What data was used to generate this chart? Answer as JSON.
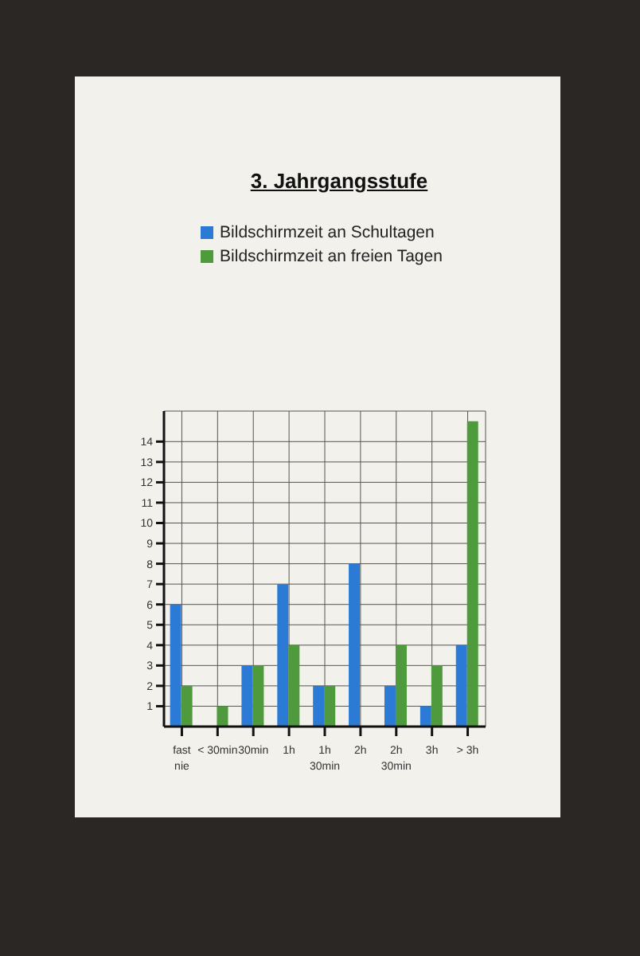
{
  "chart_data": {
    "type": "bar",
    "title": "3. Jahrgangsstufe",
    "categories": [
      "fast\nnie",
      "< 30min",
      "30min",
      "1h",
      "1h\n30min",
      "2h",
      "2h\n30min",
      "3h",
      "> 3h"
    ],
    "series": [
      {
        "name": "Bildschirmzeit an Schultagen",
        "color": "#2b7bd6",
        "values": [
          6,
          0,
          3,
          7,
          2,
          8,
          2,
          1,
          4
        ]
      },
      {
        "name": "Bildschirmzeit an freien Tagen",
        "color": "#4e9a3c",
        "values": [
          2,
          1,
          3,
          4,
          2,
          0,
          4,
          3,
          15
        ]
      }
    ],
    "ylim": [
      0,
      15.5
    ],
    "yticks": [
      1,
      2,
      3,
      4,
      5,
      6,
      7,
      8,
      9,
      10,
      11,
      12,
      13,
      14
    ],
    "grid": true,
    "legend": "top"
  }
}
